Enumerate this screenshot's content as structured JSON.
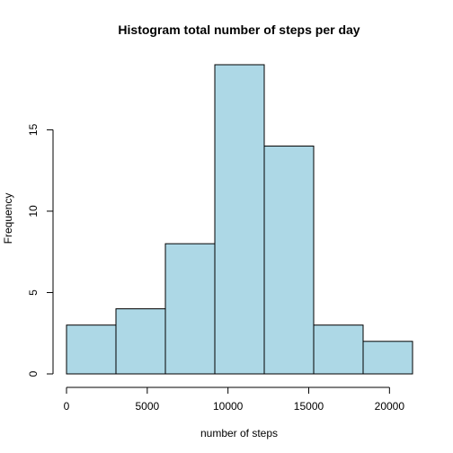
{
  "chart_data": {
    "type": "bar",
    "title": "Histogram total number of steps per day",
    "xlabel": "number of steps",
    "ylabel": "Frequency",
    "bins": [
      {
        "from": 0,
        "to": 3061.25,
        "count": 3
      },
      {
        "from": 3061.25,
        "to": 6122.5,
        "count": 4
      },
      {
        "from": 6122.5,
        "to": 9183.75,
        "count": 8
      },
      {
        "from": 9183.75,
        "to": 12245,
        "count": 19
      },
      {
        "from": 12245,
        "to": 15306.25,
        "count": 14
      },
      {
        "from": 15306.25,
        "to": 18367.5,
        "count": 3
      },
      {
        "from": 18367.5,
        "to": 21428.75,
        "count": 2
      }
    ],
    "xticks": [
      0,
      5000,
      10000,
      15000,
      20000
    ],
    "yticks": [
      0,
      5,
      10,
      15
    ],
    "xlim": [
      0,
      21428.75
    ],
    "ylim": [
      0,
      19
    ],
    "bar_color": "#add8e6",
    "grid": false
  }
}
